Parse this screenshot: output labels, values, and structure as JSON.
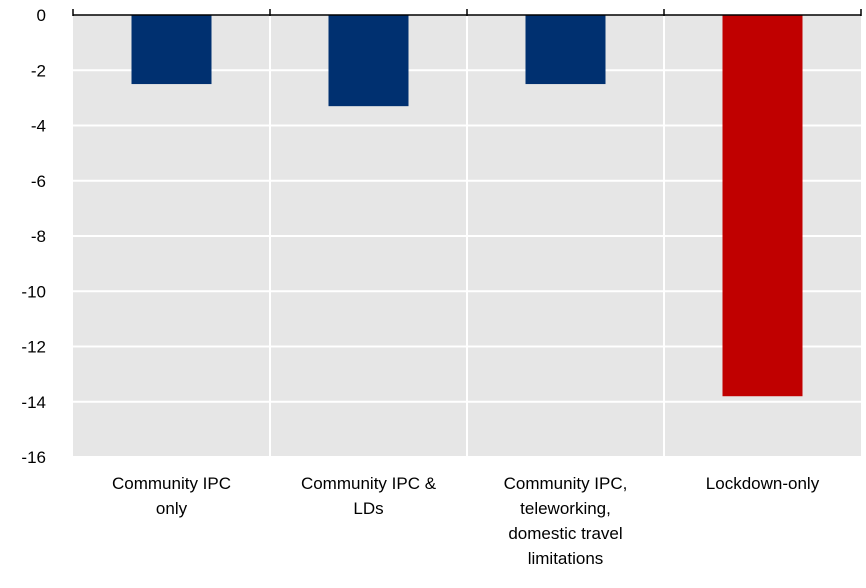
{
  "chart_data": {
    "type": "bar",
    "categories": [
      [
        "Community IPC",
        "only"
      ],
      [
        "Community IPC &",
        "LDs"
      ],
      [
        "Community IPC,",
        "teleworking,",
        "domestic travel",
        "limitations"
      ],
      [
        "Lockdown-only"
      ]
    ],
    "values": [
      -2.5,
      -3.3,
      -2.5,
      -13.8
    ],
    "bar_colors": [
      "#003070",
      "#003070",
      "#003070",
      "#c00000"
    ],
    "ylim": [
      -16,
      0
    ],
    "yticks": [
      0,
      -2,
      -4,
      -6,
      -8,
      -10,
      -12,
      -14,
      -16
    ],
    "grid": true,
    "plot_background": "#e6e6e6",
    "title": "",
    "xlabel": "",
    "ylabel": ""
  }
}
